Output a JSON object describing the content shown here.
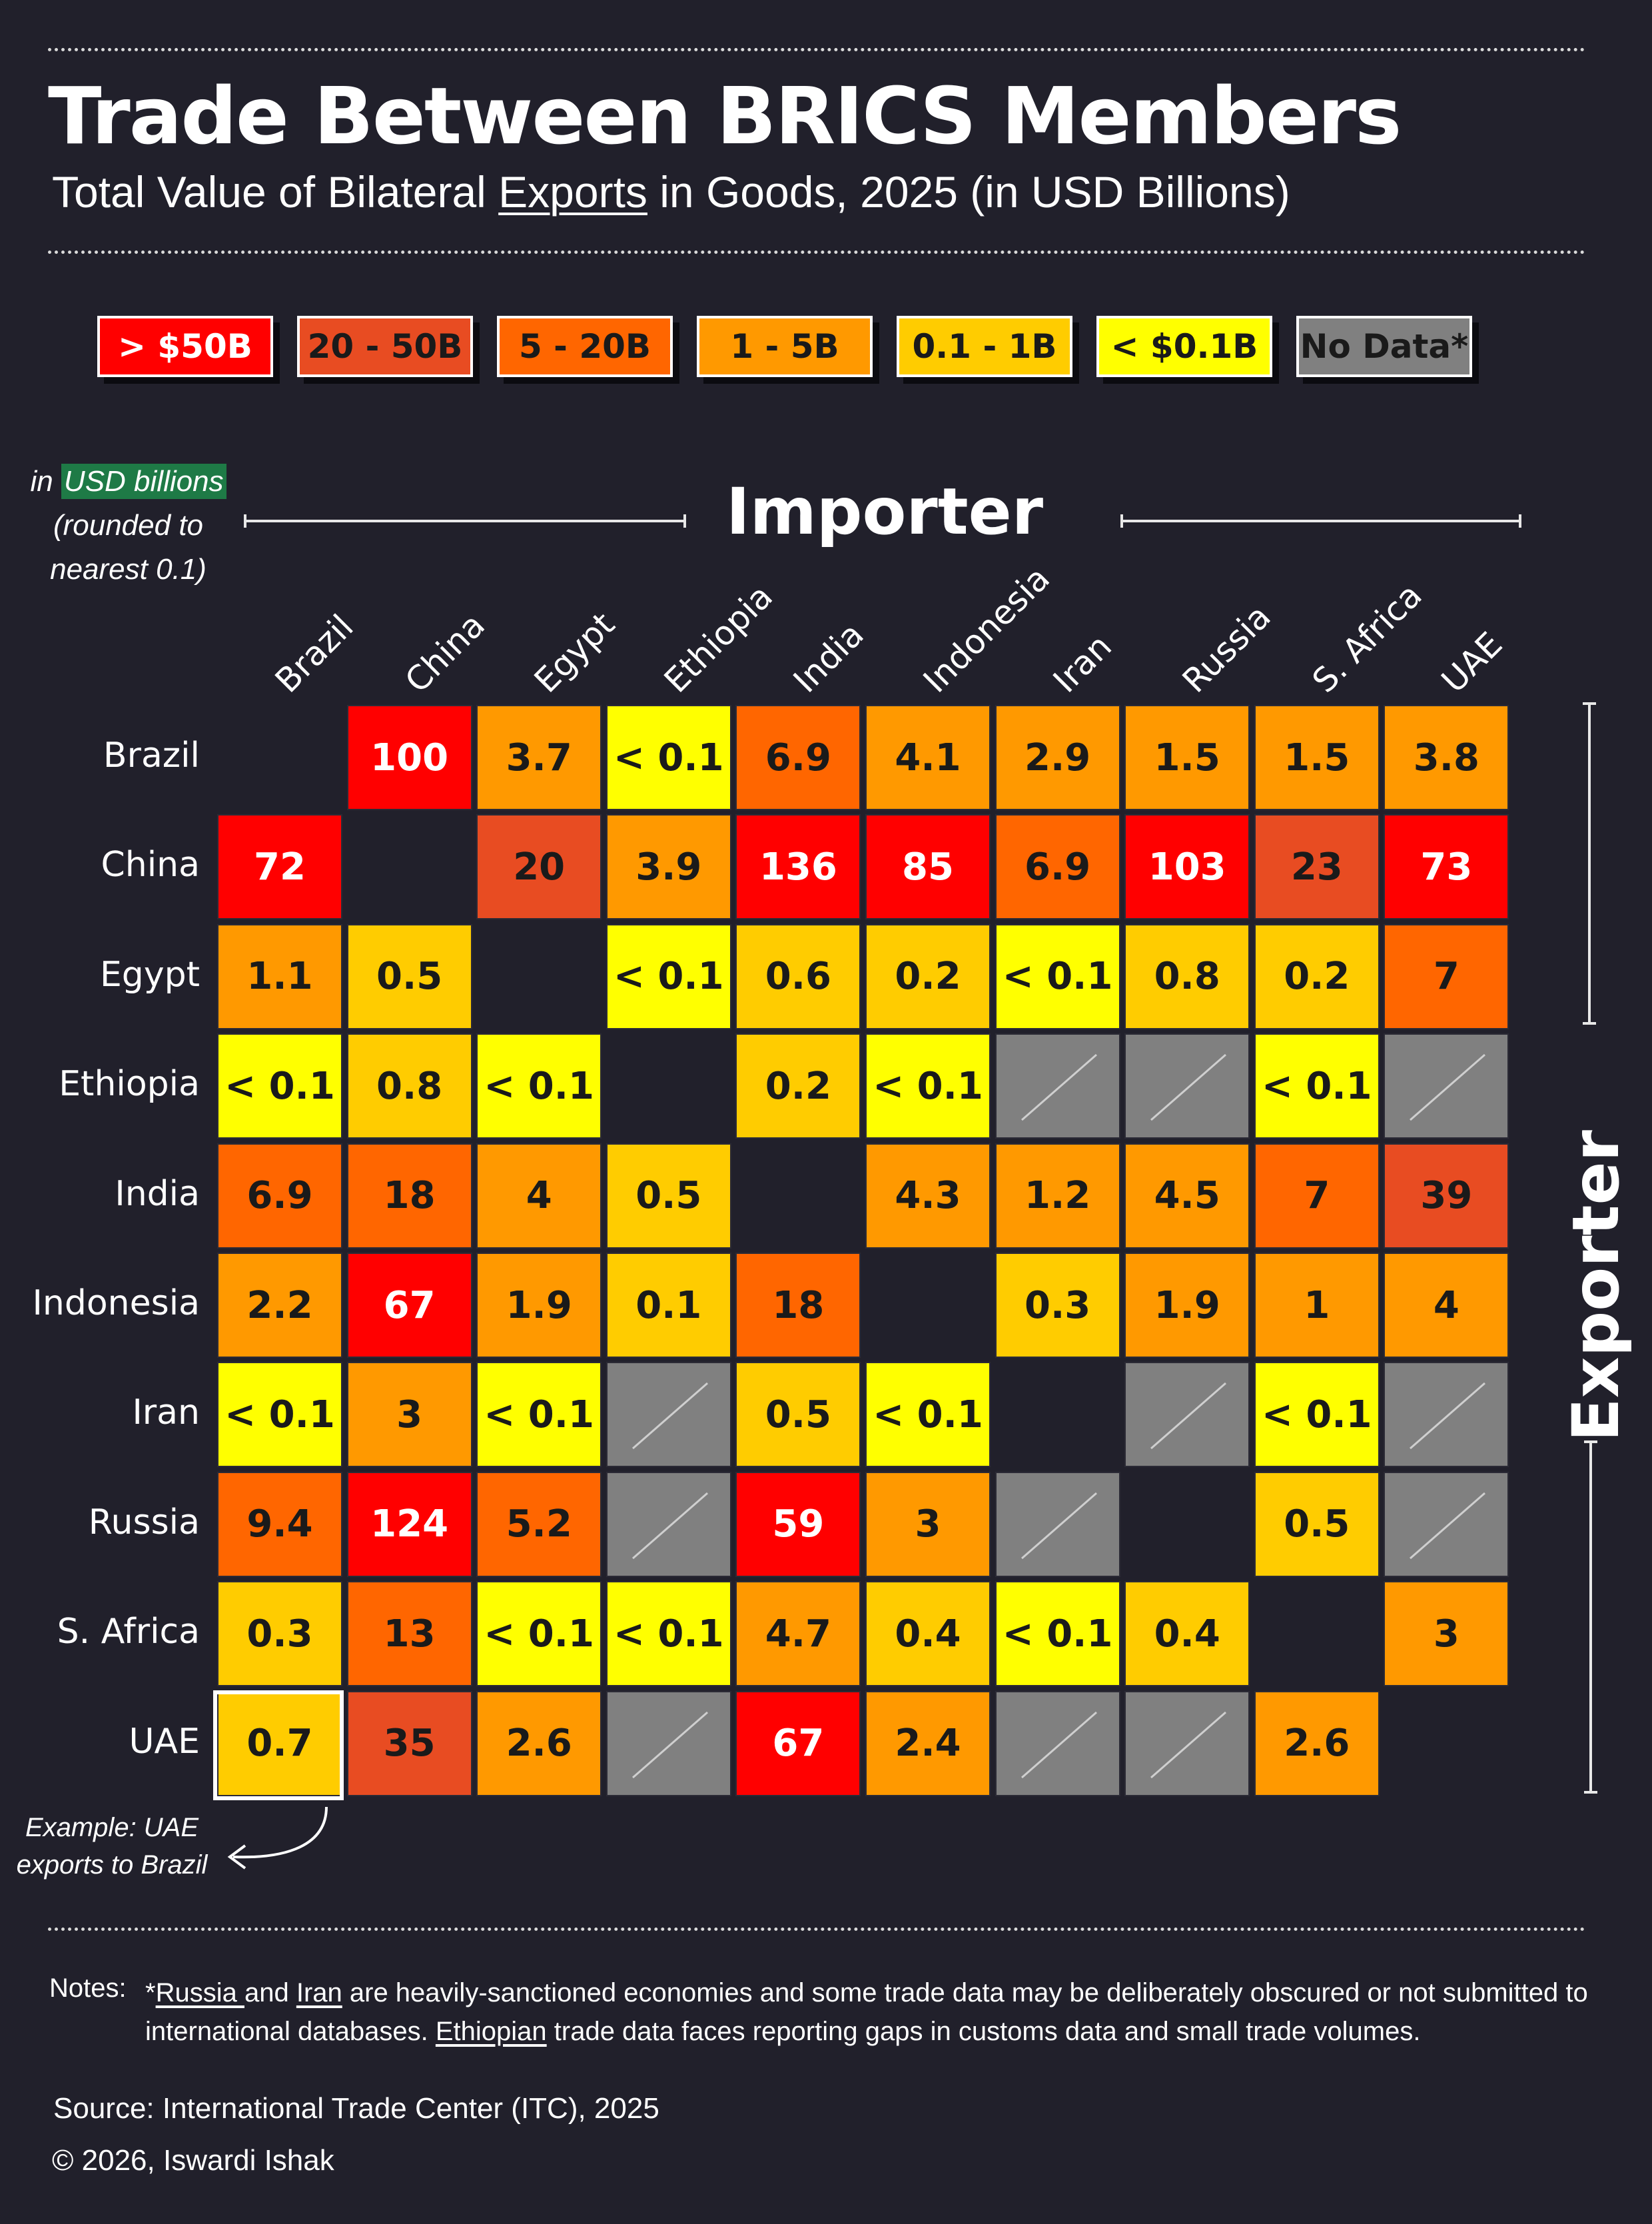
{
  "header": {
    "title": "Trade Between BRICS Members",
    "subtitle_before": "Total Value of Bilateral ",
    "subtitle_underlined": "Exports",
    "subtitle_after": " in Goods, 2025 (in USD Billions)"
  },
  "legend": [
    {
      "label": "> $50B",
      "color": "#ff0000",
      "text_color": "#ffffff"
    },
    {
      "label": "20 - 50B",
      "color": "#e84c22",
      "text_color": "#1a1a1a"
    },
    {
      "label": "5 - 20B",
      "color": "#ff6600",
      "text_color": "#1a1a1a"
    },
    {
      "label": "1 - 5B",
      "color": "#ff9900",
      "text_color": "#1a1a1a"
    },
    {
      "label": "0.1 - 1B",
      "color": "#ffcc00",
      "text_color": "#1a1a1a"
    },
    {
      "label": "< $0.1B",
      "color": "#ffff00",
      "text_color": "#1a1a1a"
    },
    {
      "label": "No Data*",
      "color": "#808080",
      "text_color": "#1a1a1a"
    }
  ],
  "unit_note": {
    "prefix": "in",
    "highlight": "USD billions",
    "line2": "(rounded to",
    "line3": "nearest 0.1)"
  },
  "axis_titles": {
    "importer": "Importer",
    "exporter": "Exporter"
  },
  "example_note": {
    "line1": "Example: UAE",
    "line2": "exports to Brazil"
  },
  "chart_data": {
    "type": "heatmap",
    "title": "Trade Between BRICS Members",
    "subtitle": "Total Value of Bilateral Exports in Goods, 2025 (in USD Billions)",
    "xlabel": "Importer",
    "ylabel": "Exporter",
    "x_categories": [
      "Brazil",
      "China",
      "Egypt",
      "Ethiopia",
      "India",
      "Indonesia",
      "Iran",
      "Russia",
      "S. Africa",
      "UAE"
    ],
    "y_categories": [
      "Brazil",
      "China",
      "Egypt",
      "Ethiopia",
      "India",
      "Indonesia",
      "Iran",
      "Russia",
      "S. Africa",
      "UAE"
    ],
    "cells": [
      [
        null,
        "100",
        "3.7",
        "< 0.1",
        "6.9",
        "4.1",
        "2.9",
        "1.5",
        "1.5",
        "3.8"
      ],
      [
        "72",
        null,
        "20",
        "3.9",
        "136",
        "85",
        "6.9",
        "103",
        "23",
        "73"
      ],
      [
        "1.1",
        "0.5",
        null,
        "< 0.1",
        "0.6",
        "0.2",
        "< 0.1",
        "0.8",
        "0.2",
        "7"
      ],
      [
        "< 0.1",
        "0.8",
        "< 0.1",
        null,
        "0.2",
        "< 0.1",
        "no-data",
        "no-data",
        "< 0.1",
        "no-data"
      ],
      [
        "6.9",
        "18",
        "4",
        "0.5",
        null,
        "4.3",
        "1.2",
        "4.5",
        "7",
        "39"
      ],
      [
        "2.2",
        "67",
        "1.9",
        "0.1",
        "18",
        null,
        "0.3",
        "1.9",
        "1",
        "4"
      ],
      [
        "< 0.1",
        "3",
        "< 0.1",
        "no-data",
        "0.5",
        "< 0.1",
        null,
        "no-data",
        "< 0.1",
        "no-data"
      ],
      [
        "9.4",
        "124",
        "5.2",
        "no-data",
        "59",
        "3",
        "no-data",
        null,
        "0.5",
        "no-data"
      ],
      [
        "0.3",
        "13",
        "< 0.1",
        "< 0.1",
        "4.7",
        "0.4",
        "< 0.1",
        "0.4",
        null,
        "3"
      ],
      [
        "0.7",
        "35",
        "2.6",
        "no-data",
        "67",
        "2.4",
        "no-data",
        "no-data",
        "2.6",
        null
      ]
    ]
  },
  "notes": {
    "label": "Notes:",
    "star": "*",
    "russia": "Russia ",
    "and": "and ",
    "iran": "Iran",
    "text1": " are heavily-sanctioned economies and some trade data may be deliberately obscured or not submitted to international databases. ",
    "ethiopian": "Ethiopian",
    "text2": " trade data faces reporting gaps in customs data and small trade volumes."
  },
  "source": "Source: International Trade Center (ITC), 2025",
  "credit": "© 2026, Iswardi Ishak"
}
